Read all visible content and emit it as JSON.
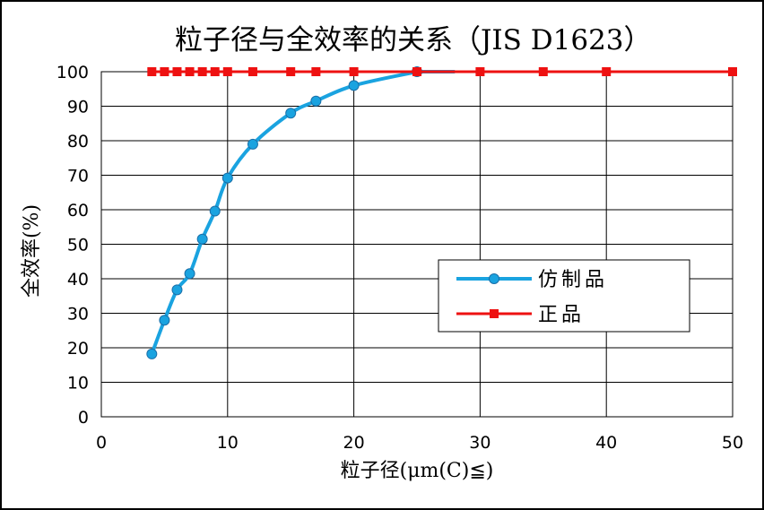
{
  "chart_data": {
    "type": "line",
    "title": "粒子径与全效率的关系（JIS D1623）",
    "xlabel": "粒子径(μm(C)≦)",
    "ylabel": "全效率(%)",
    "xlim": [
      0,
      50
    ],
    "ylim": [
      0,
      100
    ],
    "xticks": [
      0,
      10,
      20,
      30,
      40,
      50
    ],
    "yticks": [
      0,
      10,
      20,
      30,
      40,
      50,
      60,
      70,
      80,
      90,
      100
    ],
    "grid": true,
    "legend_position": "right",
    "series": [
      {
        "name": "仿制品",
        "color": "#1aa3e0",
        "marker": "circle",
        "x": [
          4,
          5,
          6,
          7,
          8,
          9,
          10,
          12,
          15,
          17,
          20,
          25
        ],
        "y": [
          18.2,
          28,
          36.8,
          41.5,
          51.5,
          59.6,
          69.2,
          79,
          88,
          91.5,
          96,
          100
        ]
      },
      {
        "name": "正品",
        "color": "#ee1111",
        "marker": "square",
        "x": [
          4,
          5,
          6,
          7,
          8,
          9,
          10,
          12,
          15,
          17,
          20,
          25,
          30,
          35,
          40,
          50
        ],
        "y": [
          100,
          100,
          100,
          100,
          100,
          100,
          100,
          100,
          100,
          100,
          100,
          100,
          100,
          100,
          100,
          100
        ]
      }
    ]
  }
}
